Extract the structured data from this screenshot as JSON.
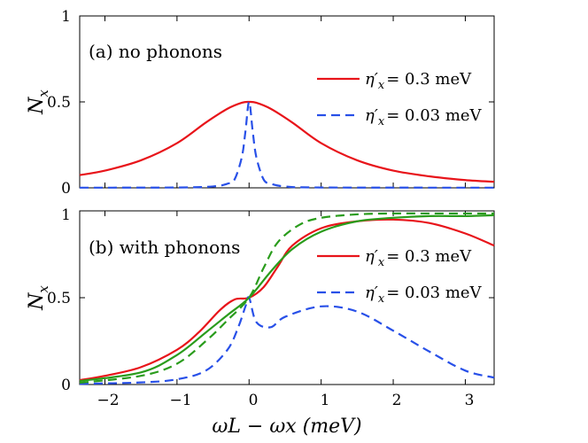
{
  "chart_data": [
    {
      "type": "line",
      "panel_label": "(a) no phonons",
      "ylabel": "N_x",
      "ylabel_main": "N",
      "ylabel_sub": "x",
      "xlim": [
        -2.35,
        3.4
      ],
      "ylim": [
        0,
        1
      ],
      "yticks": [
        0,
        0.5,
        1
      ],
      "ytick_labels": [
        "0",
        "0.5",
        "1"
      ],
      "legend": [
        {
          "series": "s1",
          "label": "η′x = 0.3 meV",
          "main": "η′",
          "sub": "x",
          "value": "= 0.3 meV"
        },
        {
          "series": "s2",
          "label": "η′x = 0.03 meV",
          "main": "η′",
          "sub": "x",
          "value": "= 0.03 meV"
        }
      ],
      "series": [
        {
          "id": "s1",
          "name": "η′x = 0.3 meV",
          "color": "#e8141a",
          "dash": "solid",
          "x": [
            -2.35,
            -2,
            -1.5,
            -1,
            -0.6,
            -0.3,
            -0.1,
            0,
            0.1,
            0.3,
            0.6,
            1,
            1.5,
            2,
            2.5,
            3,
            3.4
          ],
          "y": [
            0.074,
            0.1,
            0.16,
            0.26,
            0.38,
            0.46,
            0.495,
            0.5,
            0.495,
            0.46,
            0.38,
            0.26,
            0.16,
            0.1,
            0.067,
            0.045,
            0.035
          ]
        },
        {
          "id": "s2",
          "name": "η′x = 0.03 meV",
          "color": "#2850e8",
          "dash": "dashed",
          "x": [
            -2.35,
            -1,
            -0.5,
            -0.3,
            -0.2,
            -0.1,
            -0.05,
            0,
            0.05,
            0.1,
            0.2,
            0.3,
            0.5,
            1,
            3.4
          ],
          "y": [
            0.001,
            0.002,
            0.008,
            0.024,
            0.05,
            0.18,
            0.33,
            0.5,
            0.33,
            0.18,
            0.05,
            0.024,
            0.008,
            0.002,
            0.001
          ]
        }
      ]
    },
    {
      "type": "line",
      "panel_label": "(b) with phonons",
      "ylabel": "N_x",
      "ylabel_main": "N",
      "ylabel_sub": "x",
      "xlabel": "ωL − ωx (meV)",
      "xlim": [
        -2.35,
        3.4
      ],
      "ylim": [
        0,
        1
      ],
      "xticks": [
        -2,
        -1,
        0,
        1,
        2,
        3
      ],
      "xtick_labels": [
        "−2",
        "−1",
        "0",
        "1",
        "2",
        "3"
      ],
      "yticks": [
        0,
        0.5,
        1
      ],
      "ytick_labels": [
        "0",
        "0.5",
        "1"
      ],
      "legend": [
        {
          "series": "s1",
          "label": "η′x = 0.3 meV",
          "main": "η′",
          "sub": "x",
          "value": "= 0.3 meV"
        },
        {
          "series": "s2",
          "label": "η′x = 0.03 meV",
          "main": "η′",
          "sub": "x",
          "value": "= 0.03 meV"
        }
      ],
      "series": [
        {
          "id": "s1",
          "name": "η′x = 0.3 meV",
          "color": "#e8141a",
          "dash": "solid",
          "x": [
            -2.35,
            -2,
            -1.5,
            -1,
            -0.7,
            -0.4,
            -0.2,
            0,
            0.2,
            0.4,
            0.6,
            1,
            1.5,
            2,
            2.5,
            3,
            3.4
          ],
          "y": [
            0.025,
            0.05,
            0.1,
            0.2,
            0.3,
            0.43,
            0.49,
            0.5,
            0.56,
            0.68,
            0.8,
            0.9,
            0.94,
            0.95,
            0.93,
            0.87,
            0.8
          ]
        },
        {
          "id": "s2",
          "name": "η′x = 0.03 meV",
          "color": "#2850e8",
          "dash": "dashed",
          "x": [
            -2.35,
            -1.5,
            -1,
            -0.6,
            -0.3,
            -0.15,
            -0.05,
            0,
            0.1,
            0.3,
            0.5,
            1,
            1.5,
            2,
            2.5,
            3,
            3.4
          ],
          "y": [
            0.004,
            0.012,
            0.03,
            0.08,
            0.2,
            0.33,
            0.45,
            0.5,
            0.36,
            0.33,
            0.39,
            0.45,
            0.42,
            0.31,
            0.19,
            0.08,
            0.04
          ]
        },
        {
          "id": "s3",
          "name": "green solid",
          "color": "#2a9c1c",
          "dash": "solid",
          "x": [
            -2.35,
            -1.5,
            -1,
            -0.6,
            -0.3,
            0,
            0.3,
            0.6,
            1,
            1.5,
            2,
            2.5,
            3,
            3.4
          ],
          "y": [
            0.02,
            0.07,
            0.17,
            0.3,
            0.4,
            0.5,
            0.65,
            0.78,
            0.88,
            0.94,
            0.96,
            0.97,
            0.97,
            0.975
          ]
        },
        {
          "id": "s4",
          "name": "green dashed",
          "color": "#2a9c1c",
          "dash": "dashed",
          "x": [
            -2.35,
            -1.5,
            -1,
            -0.6,
            -0.3,
            0,
            0.2,
            0.4,
            0.7,
            1,
            1.5,
            2,
            2.5,
            3,
            3.4
          ],
          "y": [
            0.01,
            0.05,
            0.12,
            0.25,
            0.37,
            0.5,
            0.67,
            0.82,
            0.92,
            0.96,
            0.98,
            0.985,
            0.985,
            0.985,
            0.985
          ]
        }
      ]
    }
  ]
}
